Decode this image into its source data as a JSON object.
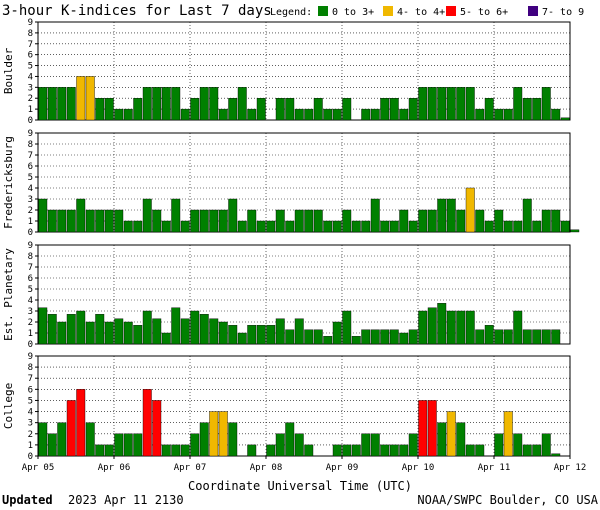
{
  "chart_data": {
    "type": "bar",
    "title": "3-hour K-indices for Last 7 days",
    "legend": {
      "label": "Legend:",
      "placement": "top-right",
      "entries": [
        {
          "name": "0 to 3+",
          "color": "#008000"
        },
        {
          "name": "4- to 4+",
          "color": "#f0b800"
        },
        {
          "name": "5- to 6+",
          "color": "#ff0000"
        },
        {
          "name": "7- to 9",
          "color": "#400080"
        }
      ]
    },
    "ylim": [
      0,
      9
    ],
    "yticks": [
      "0",
      "1",
      "2",
      "3",
      "4",
      "5",
      "6",
      "7",
      "8",
      "9"
    ],
    "xlabel": "Coordinate Universal Time (UTC)",
    "xticks": [
      "Apr 05",
      "Apr 06",
      "Apr 07",
      "Apr 08",
      "Apr 09",
      "Apr 10",
      "Apr 11",
      "Apr 12"
    ],
    "grid": true,
    "series": [
      {
        "name": "Boulder",
        "values": [
          3,
          3,
          3,
          3,
          4,
          4,
          2,
          2,
          1,
          1,
          2,
          3,
          3,
          3,
          3,
          1,
          2,
          3,
          3,
          1,
          2,
          3,
          1,
          2,
          0,
          2,
          2,
          1,
          1,
          2,
          1,
          1,
          2,
          0,
          1,
          1,
          2,
          2,
          1,
          2,
          3,
          3,
          3,
          3,
          3,
          3,
          1,
          2,
          1,
          1,
          3,
          2,
          2,
          3,
          1,
          0.2
        ]
      },
      {
        "name": "Fredericksburg",
        "values": [
          3,
          2,
          2,
          2,
          3,
          2,
          2,
          2,
          2,
          1,
          1,
          3,
          2,
          1,
          3,
          1,
          2,
          2,
          2,
          2,
          3,
          1,
          2,
          1,
          1,
          2,
          1,
          2,
          2,
          2,
          1,
          1,
          2,
          1,
          1,
          3,
          1,
          1,
          2,
          1,
          2,
          2,
          3,
          3,
          2,
          4,
          2,
          1,
          2,
          1,
          1,
          3,
          1,
          2,
          2,
          1,
          0.2
        ]
      },
      {
        "name": "Est. Planetary",
        "values": [
          3.3,
          2.7,
          2,
          2.7,
          3,
          2,
          2.7,
          2,
          2.3,
          2,
          1.7,
          3,
          2.3,
          1,
          3.3,
          2.3,
          3,
          2.7,
          2.3,
          2,
          1.7,
          1,
          1.7,
          1.7,
          1.7,
          2.3,
          1.3,
          2.3,
          1.3,
          1.3,
          0.7,
          2,
          3,
          0.7,
          1.3,
          1.3,
          1.3,
          1.3,
          1,
          1.3,
          3,
          3.3,
          3.7,
          3,
          3,
          3,
          1.3,
          1.7,
          1.3,
          1.3,
          3,
          1.3,
          1.3,
          1.3,
          1.3
        ]
      },
      {
        "name": "College",
        "values": [
          3,
          2,
          3,
          5,
          6,
          3,
          1,
          1,
          2,
          2,
          2,
          6,
          5,
          1,
          1,
          1,
          2,
          3,
          4,
          4,
          3,
          0,
          1,
          0,
          1,
          2,
          3,
          2,
          1,
          0,
          0,
          1,
          1,
          1,
          2,
          2,
          1,
          1,
          1,
          2,
          5,
          5,
          3,
          4,
          3,
          1,
          1,
          0,
          2,
          4,
          2,
          1,
          1,
          2,
          0.2
        ]
      }
    ]
  },
  "footer": {
    "updated_label": "Updated",
    "updated_value": "2023 Apr 11 2130",
    "credit": "NOAA/SWPC Boulder, CO USA"
  }
}
